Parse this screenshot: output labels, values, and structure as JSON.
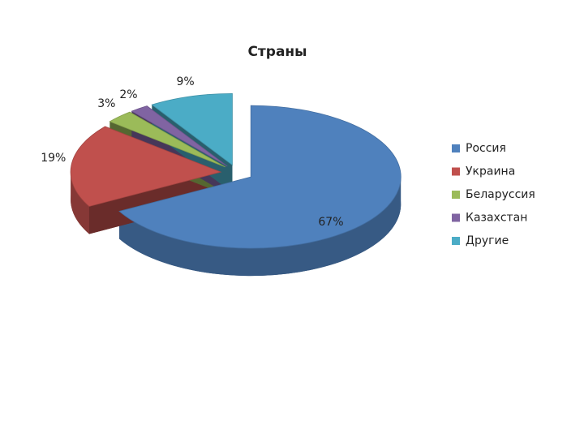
{
  "chart_data": {
    "type": "pie",
    "title": "Страны",
    "categories": [
      "Россия",
      "Украина",
      "Беларуссия",
      "Казахстан",
      "Другие"
    ],
    "values": [
      67,
      19,
      3,
      2,
      9
    ],
    "value_labels": [
      "67%",
      "19%",
      "3%",
      "2%",
      "9%"
    ],
    "colors": [
      "#4f81bd",
      "#c0504d",
      "#9bbb59",
      "#8064a2",
      "#4bacc6"
    ],
    "legend": "right"
  }
}
